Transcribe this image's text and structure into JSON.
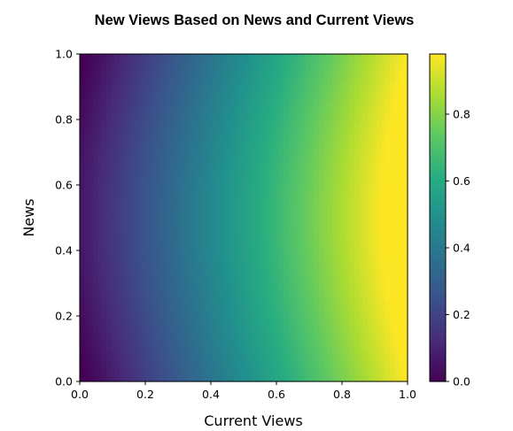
{
  "chart_data": {
    "type": "heatmap",
    "title": "New Views Based on News and Current Views",
    "xlabel": "Current Views",
    "ylabel": "News",
    "xlim": [
      0.0,
      1.0
    ],
    "ylim": [
      0.0,
      1.0
    ],
    "x_ticks": [
      "0.0",
      "0.2",
      "0.4",
      "0.6",
      "0.8",
      "1.0"
    ],
    "y_ticks": [
      "0.0",
      "0.2",
      "0.4",
      "0.6",
      "0.8",
      "1.0"
    ],
    "colorbar": {
      "colormap": "viridis",
      "range": [
        0.0,
        0.98
      ],
      "ticks": [
        "0.0",
        "0.2",
        "0.4",
        "0.6",
        "0.8"
      ],
      "tick_values": [
        0.0,
        0.2,
        0.4,
        0.6,
        0.8
      ]
    },
    "grid": false,
    "value_model": "value ≈ current_views + 0.08·sin(π·news) - 0.02 (0 ≤ value ≤ 1)"
  }
}
